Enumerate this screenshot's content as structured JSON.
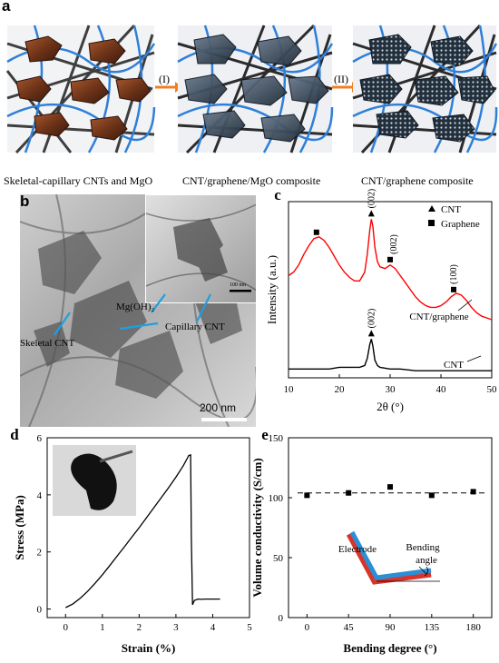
{
  "panel_a": {
    "letter": "a",
    "step1": "(I)",
    "step2": "(II)",
    "captions": [
      "Skeletal-capillary CNTs and MgO",
      "CNT/graphene/MgO composite",
      "CNT/graphene composite"
    ]
  },
  "panel_b": {
    "letter": "b",
    "labels": {
      "mgoh2": "Mg(OH)₂",
      "skeletal": "Skeletal CNT",
      "capillary": "Capillary CNT"
    },
    "scalebar": "200 nm",
    "inset_scalebar": "100 nm"
  },
  "chart_data": [
    {
      "panel": "c",
      "type": "line",
      "xlabel": "2θ (°)",
      "ylabel": "Intensity (a.u.)",
      "xlim": [
        10,
        50
      ],
      "xticks": [
        10,
        20,
        30,
        40,
        50
      ],
      "yticks_shown": false,
      "legend": [
        {
          "marker": "triangle",
          "name": "CNT"
        },
        {
          "marker": "square",
          "name": "Graphene"
        }
      ],
      "legend_position": "top-right",
      "series": [
        {
          "name": "CNT/graphene",
          "color": "#ff0000",
          "x": [
            10,
            11,
            12,
            13,
            14,
            15,
            16,
            17,
            18,
            19,
            20,
            21,
            22,
            23,
            24,
            25,
            25.5,
            26,
            26.3,
            26.6,
            27,
            27.5,
            28,
            29,
            30,
            31,
            32,
            33,
            34,
            35,
            36,
            37,
            38,
            39,
            40,
            41,
            42,
            43,
            44,
            45,
            46,
            47,
            48,
            49,
            50
          ],
          "y": [
            0.58,
            0.6,
            0.64,
            0.7,
            0.75,
            0.79,
            0.8,
            0.78,
            0.74,
            0.69,
            0.64,
            0.6,
            0.57,
            0.55,
            0.55,
            0.6,
            0.7,
            0.84,
            0.9,
            0.86,
            0.74,
            0.66,
            0.63,
            0.62,
            0.64,
            0.62,
            0.58,
            0.54,
            0.5,
            0.46,
            0.43,
            0.41,
            0.4,
            0.4,
            0.41,
            0.43,
            0.46,
            0.48,
            0.47,
            0.44,
            0.4,
            0.37,
            0.35,
            0.34,
            0.33
          ]
        },
        {
          "name": "CNT",
          "color": "#000000",
          "x": [
            10,
            12,
            14,
            16,
            18,
            20,
            22,
            24,
            25,
            25.5,
            26,
            26.3,
            26.6,
            27,
            27.5,
            28,
            30,
            32,
            35,
            40,
            45,
            50
          ],
          "y": [
            0.05,
            0.05,
            0.05,
            0.05,
            0.05,
            0.06,
            0.06,
            0.06,
            0.07,
            0.11,
            0.19,
            0.22,
            0.18,
            0.1,
            0.07,
            0.06,
            0.05,
            0.05,
            0.04,
            0.04,
            0.04,
            0.04
          ]
        }
      ],
      "annotations": [
        {
          "text": "(002)",
          "x": 26.3,
          "series": "CNT/graphene"
        },
        {
          "text": "(002)",
          "x": 30,
          "series": "CNT/graphene"
        },
        {
          "text": "(100)",
          "x": 42.5,
          "series": "CNT/graphene"
        },
        {
          "text": "(002)",
          "x": 26.3,
          "series": "CNT"
        }
      ],
      "curve_labels": [
        "CNT/graphene",
        "CNT"
      ],
      "markers": [
        {
          "type": "square",
          "x": 15.5,
          "series": "CNT/graphene"
        },
        {
          "type": "triangle",
          "x": 26.3,
          "series": "CNT/graphene"
        },
        {
          "type": "square",
          "x": 30,
          "series": "CNT/graphene"
        },
        {
          "type": "square",
          "x": 42.5,
          "series": "CNT/graphene"
        },
        {
          "type": "triangle",
          "x": 26.3,
          "series": "CNT"
        }
      ]
    },
    {
      "panel": "d",
      "type": "line",
      "xlabel": "Strain (%)",
      "ylabel": "Stress (MPa)",
      "xlim": [
        -0.5,
        5
      ],
      "ylim": [
        -0.3,
        6
      ],
      "xticks": [
        0,
        1,
        2,
        3,
        4,
        5
      ],
      "yticks": [
        0,
        2,
        4,
        6
      ],
      "series": [
        {
          "name": "stress-strain",
          "color": "#000000",
          "x": [
            0,
            0.2,
            0.4,
            0.6,
            0.8,
            1.0,
            1.2,
            1.4,
            1.6,
            1.8,
            2.0,
            2.2,
            2.4,
            2.6,
            2.8,
            3.0,
            3.2,
            3.35,
            3.4,
            3.42,
            3.45,
            3.5,
            3.6,
            3.7,
            3.8,
            3.9,
            4.0,
            4.2
          ],
          "y": [
            0.05,
            0.18,
            0.38,
            0.62,
            0.9,
            1.2,
            1.52,
            1.85,
            2.18,
            2.52,
            2.85,
            3.2,
            3.55,
            3.9,
            4.25,
            4.62,
            5.02,
            5.38,
            5.4,
            2.5,
            0.15,
            0.3,
            0.35,
            0.34,
            0.35,
            0.35,
            0.35,
            0.35
          ]
        }
      ]
    },
    {
      "panel": "e",
      "type": "scatter",
      "xlabel": "Bending degree (°)",
      "ylabel": "Volume conductivity (S/cm)",
      "xlim": [
        -20,
        200
      ],
      "ylim": [
        0,
        150
      ],
      "xticks": [
        0,
        45,
        90,
        135,
        180
      ],
      "yticks": [
        0,
        50,
        100,
        150
      ],
      "series": [
        {
          "name": "conductivity",
          "color": "#000000",
          "x": [
            0,
            45,
            90,
            135,
            180
          ],
          "y": [
            102,
            104,
            109,
            102,
            105
          ]
        }
      ],
      "reference_line": {
        "style": "dashed",
        "y": 104
      },
      "inset_labels": {
        "electrode": "Electrode",
        "bending_angle": "Bending\nangle"
      }
    }
  ]
}
